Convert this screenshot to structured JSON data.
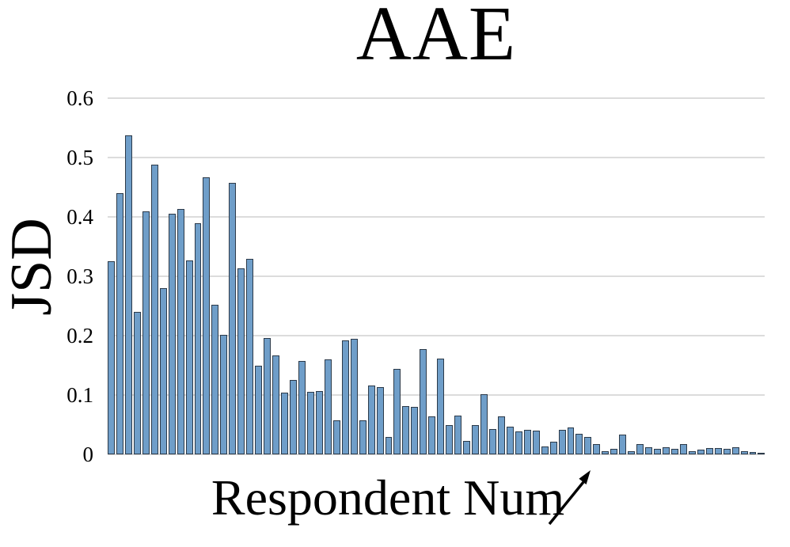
{
  "colors": {
    "bar_fill": "#6F9EC9",
    "bar_border": "#2C3A49",
    "gridline": "#DCDCDC",
    "text": "#000000"
  },
  "icons": {
    "x_axis_arrow": "up-right-arrow"
  },
  "chart_data": {
    "type": "bar",
    "title": "AAE",
    "xlabel": "Respondent Num",
    "ylabel": "JSD",
    "ylim": [
      0,
      0.6
    ],
    "yticks": [
      0.6,
      0.5,
      0.4,
      0.3,
      0.2,
      0.1,
      0
    ],
    "ytick_labels": [
      "0.6",
      "0.5",
      "0.4",
      "0.3",
      "0.2",
      "0.1",
      "0"
    ],
    "grid": true,
    "legend": "none",
    "x_axis_tick_labels": "none (bars indexed by respondent number, increasing left to right)",
    "values": [
      0.325,
      0.44,
      0.537,
      0.24,
      0.41,
      0.488,
      0.28,
      0.405,
      0.413,
      0.327,
      0.39,
      0.467,
      0.252,
      0.202,
      0.458,
      0.314,
      0.33,
      0.15,
      0.196,
      0.167,
      0.104,
      0.126,
      0.157,
      0.105,
      0.107,
      0.16,
      0.057,
      0.192,
      0.195,
      0.057,
      0.116,
      0.114,
      0.03,
      0.144,
      0.082,
      0.08,
      0.178,
      0.064,
      0.162,
      0.05,
      0.066,
      0.023,
      0.049,
      0.102,
      0.043,
      0.064,
      0.047,
      0.039,
      0.042,
      0.04,
      0.013,
      0.021,
      0.042,
      0.045,
      0.035,
      0.029,
      0.017,
      0.006,
      0.01,
      0.034,
      0.006,
      0.018,
      0.012,
      0.01,
      0.012,
      0.01,
      0.017,
      0.005,
      0.008,
      0.011,
      0.011,
      0.009,
      0.012,
      0.006,
      0.004,
      0.003
    ]
  }
}
